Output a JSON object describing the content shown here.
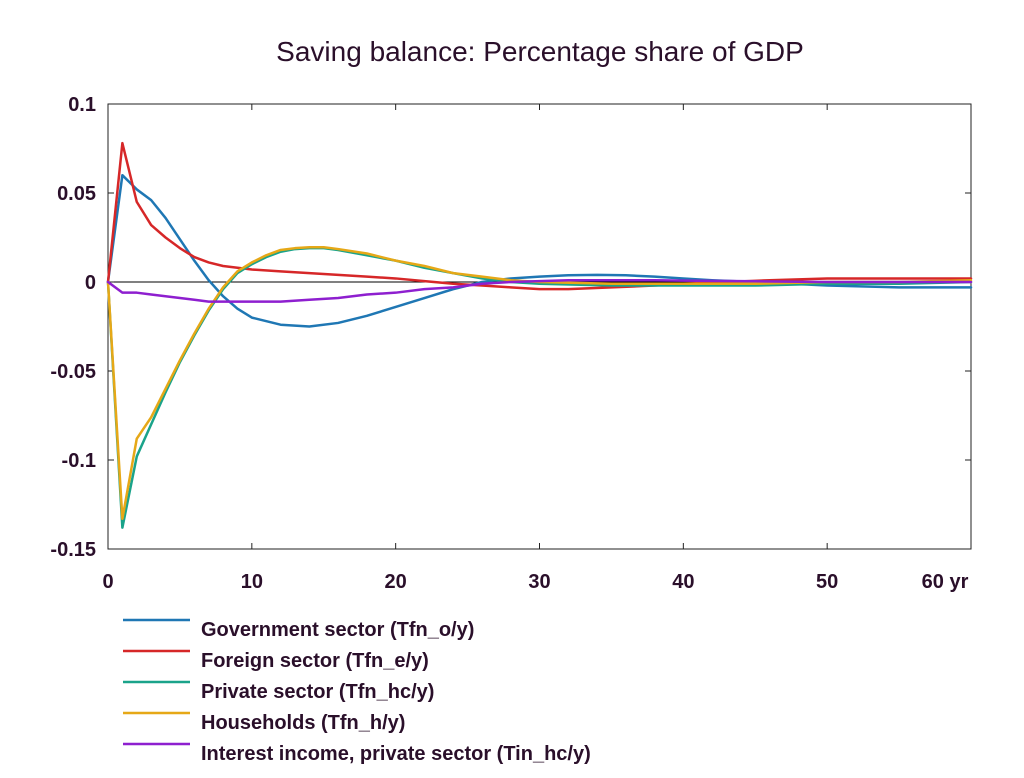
{
  "chart_data": {
    "type": "line",
    "title": "Saving balance: Percentage share of GDP",
    "x_unit": "yr",
    "xlim": [
      0,
      60
    ],
    "ylim": [
      -0.15,
      0.1
    ],
    "x_ticks": [
      0,
      10,
      20,
      30,
      40,
      50,
      60
    ],
    "x_tick_labels": [
      "0",
      "10",
      "20",
      "30",
      "40",
      "50",
      "60 yr"
    ],
    "y_ticks": [
      0.1,
      0.05,
      0,
      -0.05,
      -0.1,
      -0.15
    ],
    "y_tick_labels": [
      "0.1",
      "0.05",
      "0",
      "-0.05",
      "-0.1",
      "-0.15"
    ],
    "zero_line": true,
    "grid": false,
    "legend_position": "bottom-left",
    "series": [
      {
        "name": "Government sector (Tfn_o/y)",
        "color": "#1f77b4",
        "points": [
          [
            0,
            0
          ],
          [
            1,
            0.06
          ],
          [
            2,
            0.052
          ],
          [
            3,
            0.046
          ],
          [
            4,
            0.036
          ],
          [
            5,
            0.024
          ],
          [
            6,
            0.012
          ],
          [
            7,
            0.001
          ],
          [
            8,
            -0.008
          ],
          [
            9,
            -0.015
          ],
          [
            10,
            -0.02
          ],
          [
            12,
            -0.024
          ],
          [
            14,
            -0.025
          ],
          [
            16,
            -0.023
          ],
          [
            18,
            -0.019
          ],
          [
            20,
            -0.014
          ],
          [
            22,
            -0.009
          ],
          [
            24,
            -0.004
          ],
          [
            26,
            0
          ],
          [
            28,
            0.002
          ],
          [
            30,
            0.003
          ],
          [
            32,
            0.0038
          ],
          [
            34,
            0.004
          ],
          [
            36,
            0.0038
          ],
          [
            38,
            0.003
          ],
          [
            40,
            0.002
          ],
          [
            42,
            0.001
          ],
          [
            45,
            0
          ],
          [
            50,
            -0.002
          ],
          [
            55,
            -0.003
          ],
          [
            60,
            -0.003
          ]
        ]
      },
      {
        "name": "Foreign sector (Tfn_e/y)",
        "color": "#d62728",
        "points": [
          [
            0,
            0
          ],
          [
            1,
            0.078
          ],
          [
            2,
            0.045
          ],
          [
            3,
            0.032
          ],
          [
            4,
            0.025
          ],
          [
            5,
            0.019
          ],
          [
            6,
            0.014
          ],
          [
            7,
            0.011
          ],
          [
            8,
            0.009
          ],
          [
            10,
            0.007
          ],
          [
            12,
            0.006
          ],
          [
            14,
            0.005
          ],
          [
            16,
            0.004
          ],
          [
            18,
            0.003
          ],
          [
            20,
            0.002
          ],
          [
            22,
            0.0005
          ],
          [
            24,
            -0.001
          ],
          [
            26,
            -0.002
          ],
          [
            28,
            -0.003
          ],
          [
            30,
            -0.004
          ],
          [
            32,
            -0.004
          ],
          [
            35,
            -0.003
          ],
          [
            38,
            -0.002
          ],
          [
            40,
            -0.001
          ],
          [
            43,
            0
          ],
          [
            46,
            0.001
          ],
          [
            50,
            0.002
          ],
          [
            55,
            0.002
          ],
          [
            60,
            0.002
          ]
        ]
      },
      {
        "name": "Private sector (Tfn_hc/y)",
        "color": "#1aa38a",
        "points": [
          [
            0,
            0
          ],
          [
            1,
            -0.138
          ],
          [
            2,
            -0.098
          ],
          [
            3,
            -0.08
          ],
          [
            4,
            -0.062
          ],
          [
            5,
            -0.045
          ],
          [
            6,
            -0.03
          ],
          [
            7,
            -0.016
          ],
          [
            8,
            -0.004
          ],
          [
            9,
            0.005
          ],
          [
            10,
            0.01
          ],
          [
            11,
            0.014
          ],
          [
            12,
            0.017
          ],
          [
            13,
            0.0185
          ],
          [
            14,
            0.019
          ],
          [
            15,
            0.019
          ],
          [
            16,
            0.018
          ],
          [
            18,
            0.015
          ],
          [
            20,
            0.012
          ],
          [
            22,
            0.008
          ],
          [
            24,
            0.005
          ],
          [
            26,
            0.002
          ],
          [
            28,
            0
          ],
          [
            30,
            -0.001
          ],
          [
            35,
            -0.002
          ],
          [
            40,
            -0.002
          ],
          [
            45,
            -0.002
          ],
          [
            50,
            -0.001
          ],
          [
            55,
            -0.001
          ],
          [
            60,
            0
          ]
        ]
      },
      {
        "name": "Households (Tfn_h/y)",
        "color": "#e6a817",
        "points": [
          [
            0,
            0
          ],
          [
            1,
            -0.133
          ],
          [
            2,
            -0.088
          ],
          [
            3,
            -0.076
          ],
          [
            4,
            -0.06
          ],
          [
            5,
            -0.044
          ],
          [
            6,
            -0.029
          ],
          [
            7,
            -0.015
          ],
          [
            8,
            -0.003
          ],
          [
            9,
            0.006
          ],
          [
            10,
            0.011
          ],
          [
            11,
            0.015
          ],
          [
            12,
            0.018
          ],
          [
            13,
            0.019
          ],
          [
            14,
            0.0195
          ],
          [
            15,
            0.0195
          ],
          [
            16,
            0.0185
          ],
          [
            18,
            0.016
          ],
          [
            20,
            0.012
          ],
          [
            22,
            0.009
          ],
          [
            24,
            0.005
          ],
          [
            26,
            0.003
          ],
          [
            28,
            0.001
          ],
          [
            30,
            0
          ],
          [
            35,
            -0.001
          ],
          [
            40,
            -0.001
          ],
          [
            45,
            -0.001
          ],
          [
            50,
            0
          ],
          [
            55,
            0
          ],
          [
            60,
            0.001
          ]
        ]
      },
      {
        "name": "Interest income, private sector (Tin_hc/y)",
        "color": "#8e1fcf",
        "points": [
          [
            0,
            0
          ],
          [
            1,
            -0.006
          ],
          [
            2,
            -0.006
          ],
          [
            3,
            -0.007
          ],
          [
            4,
            -0.008
          ],
          [
            5,
            -0.009
          ],
          [
            6,
            -0.01
          ],
          [
            7,
            -0.011
          ],
          [
            8,
            -0.011
          ],
          [
            10,
            -0.011
          ],
          [
            12,
            -0.011
          ],
          [
            14,
            -0.01
          ],
          [
            16,
            -0.009
          ],
          [
            18,
            -0.007
          ],
          [
            20,
            -0.006
          ],
          [
            22,
            -0.004
          ],
          [
            24,
            -0.003
          ],
          [
            26,
            -0.001
          ],
          [
            28,
            0
          ],
          [
            30,
            0.0005
          ],
          [
            32,
            0.001
          ],
          [
            35,
            0.001
          ],
          [
            38,
            0.001
          ],
          [
            40,
            0.0008
          ],
          [
            45,
            0.0004
          ],
          [
            50,
            0
          ],
          [
            55,
            0
          ],
          [
            60,
            0
          ]
        ]
      }
    ]
  }
}
